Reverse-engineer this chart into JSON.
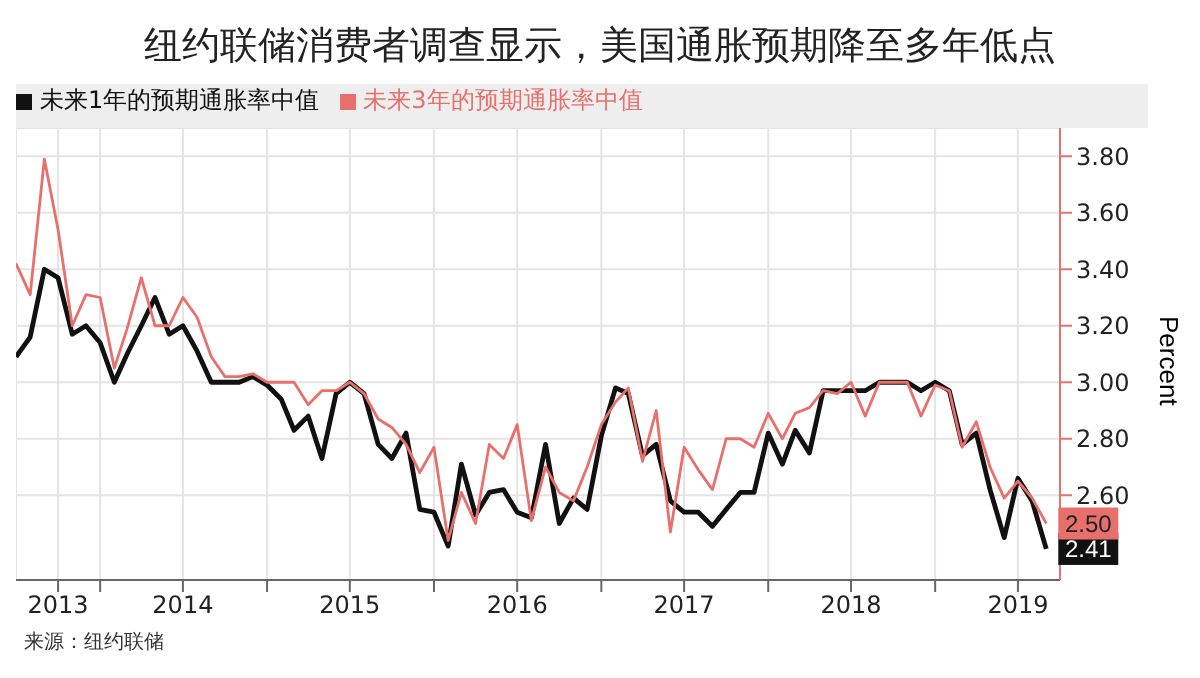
{
  "chart_data": {
    "type": "line",
    "title": "纽约联储消费者调查显示，美国通胀预期降至多年低点",
    "x": [
      "2013-07",
      "2013-08",
      "2013-09",
      "2013-10",
      "2013-11",
      "2013-12",
      "2014-01",
      "2014-02",
      "2014-03",
      "2014-04",
      "2014-05",
      "2014-06",
      "2014-07",
      "2014-08",
      "2014-09",
      "2014-10",
      "2014-11",
      "2014-12",
      "2015-01",
      "2015-02",
      "2015-03",
      "2015-04",
      "2015-05",
      "2015-06",
      "2015-07",
      "2015-08",
      "2015-09",
      "2015-10",
      "2015-11",
      "2015-12",
      "2016-01",
      "2016-02",
      "2016-03",
      "2016-04",
      "2016-05",
      "2016-06",
      "2016-07",
      "2016-08",
      "2016-09",
      "2016-10",
      "2016-11",
      "2016-12",
      "2017-01",
      "2017-02",
      "2017-03",
      "2017-04",
      "2017-05",
      "2017-06",
      "2017-07",
      "2017-08",
      "2017-09",
      "2017-10",
      "2017-11",
      "2017-12",
      "2018-01",
      "2018-02",
      "2018-03",
      "2018-04",
      "2018-05",
      "2018-06",
      "2018-07",
      "2018-08",
      "2018-09",
      "2018-10",
      "2018-11",
      "2018-12",
      "2019-01",
      "2019-02",
      "2019-03",
      "2019-04",
      "2019-05",
      "2019-06",
      "2019-07",
      "2019-08",
      "2019-09"
    ],
    "series": [
      {
        "name": "未来1年的预期通胀率中值",
        "color": "#111111",
        "values": [
          3.09,
          3.16,
          3.4,
          3.37,
          3.17,
          3.2,
          3.14,
          3.0,
          3.1,
          3.2,
          3.3,
          3.17,
          3.2,
          3.11,
          3.0,
          3.0,
          3.0,
          3.02,
          2.99,
          2.94,
          2.83,
          2.88,
          2.73,
          2.96,
          3.0,
          2.96,
          2.78,
          2.73,
          2.82,
          2.55,
          2.54,
          2.42,
          2.71,
          2.53,
          2.61,
          2.62,
          2.54,
          2.52,
          2.78,
          2.5,
          2.59,
          2.55,
          2.81,
          2.98,
          2.96,
          2.74,
          2.78,
          2.58,
          2.54,
          2.54,
          2.49,
          2.55,
          2.61,
          2.61,
          2.82,
          2.71,
          2.83,
          2.75,
          2.97,
          2.97,
          2.97,
          2.97,
          3.0,
          3.0,
          3.0,
          2.97,
          3.0,
          2.97,
          2.78,
          2.82,
          2.62,
          2.45,
          2.66,
          2.58,
          2.41
        ],
        "value_labels": [
          null,
          null,
          null,
          null,
          null,
          null,
          null,
          null,
          null,
          null,
          null,
          null,
          null,
          null,
          null,
          null,
          null,
          null,
          null,
          null,
          null,
          null,
          null,
          null,
          null,
          null,
          null,
          null,
          null,
          null,
          null,
          null,
          null,
          null,
          null,
          null,
          null,
          null,
          null,
          null,
          null,
          null,
          null,
          null,
          null,
          null,
          null,
          null,
          null,
          null,
          null,
          null,
          null,
          null,
          null,
          null,
          null,
          null,
          null,
          null,
          null,
          null,
          null,
          null,
          null,
          null,
          null,
          null,
          null,
          null,
          null,
          null,
          null,
          null,
          "2.41"
        ]
      },
      {
        "name": "未来3年的预期通胀率中值",
        "color": "#e8706c",
        "values": [
          3.42,
          3.31,
          3.79,
          3.54,
          3.2,
          3.31,
          3.3,
          3.05,
          3.19,
          3.37,
          3.2,
          3.2,
          3.3,
          3.23,
          3.09,
          3.02,
          3.02,
          3.03,
          3.0,
          3.0,
          3.0,
          2.92,
          2.97,
          2.97,
          3.0,
          2.96,
          2.87,
          2.84,
          2.78,
          2.68,
          2.77,
          2.44,
          2.61,
          2.5,
          2.78,
          2.73,
          2.85,
          2.51,
          2.7,
          2.61,
          2.58,
          2.7,
          2.85,
          2.93,
          2.98,
          2.72,
          2.9,
          2.47,
          2.77,
          2.69,
          2.62,
          2.8,
          2.8,
          2.77,
          2.89,
          2.8,
          2.89,
          2.91,
          2.97,
          2.96,
          3.0,
          2.88,
          3.0,
          3.0,
          3.0,
          2.88,
          2.99,
          2.97,
          2.77,
          2.86,
          2.7,
          2.59,
          2.65,
          2.59,
          2.5
        ],
        "value_labels": [
          null,
          null,
          null,
          null,
          null,
          null,
          null,
          null,
          null,
          null,
          null,
          null,
          null,
          null,
          null,
          null,
          null,
          null,
          null,
          null,
          null,
          null,
          null,
          null,
          null,
          null,
          null,
          null,
          null,
          null,
          null,
          null,
          null,
          null,
          null,
          null,
          null,
          null,
          null,
          null,
          null,
          null,
          null,
          null,
          null,
          null,
          null,
          null,
          null,
          null,
          null,
          null,
          null,
          null,
          null,
          null,
          null,
          null,
          null,
          null,
          null,
          null,
          null,
          null,
          null,
          null,
          null,
          null,
          null,
          null,
          null,
          null,
          null,
          null,
          "2.50"
        ]
      }
    ],
    "xlim": [
      "2013-07",
      "2019-10"
    ],
    "xticks": [
      {
        "value": "2013-10",
        "label": "2013"
      },
      {
        "value": "2014-01",
        "label": null
      },
      {
        "value": "2014-07",
        "label": "2014"
      },
      {
        "value": "2015-01",
        "label": null
      },
      {
        "value": "2015-07",
        "label": "2015"
      },
      {
        "value": "2016-01",
        "label": null
      },
      {
        "value": "2016-07",
        "label": "2016"
      },
      {
        "value": "2017-01",
        "label": null
      },
      {
        "value": "2017-07",
        "label": "2017"
      },
      {
        "value": "2018-01",
        "label": null
      },
      {
        "value": "2018-07",
        "label": "2018"
      },
      {
        "value": "2019-01",
        "label": null
      },
      {
        "value": "2019-07",
        "label": "2019"
      }
    ],
    "ylim": [
      2.3,
      3.9
    ],
    "yticks": [
      {
        "value": 2.6,
        "label": "2.60"
      },
      {
        "value": 2.8,
        "label": "2.80"
      },
      {
        "value": 3.0,
        "label": "3.00"
      },
      {
        "value": 3.2,
        "label": "3.20"
      },
      {
        "value": 3.4,
        "label": "3.40"
      },
      {
        "value": 3.6,
        "label": "3.60"
      },
      {
        "value": 3.8,
        "label": "3.80"
      }
    ],
    "ylabel": "Percent",
    "grid": true,
    "legend": "top left",
    "marker": "none",
    "line_style": "solid",
    "annotations": [
      "来源：纽约联储"
    ]
  }
}
